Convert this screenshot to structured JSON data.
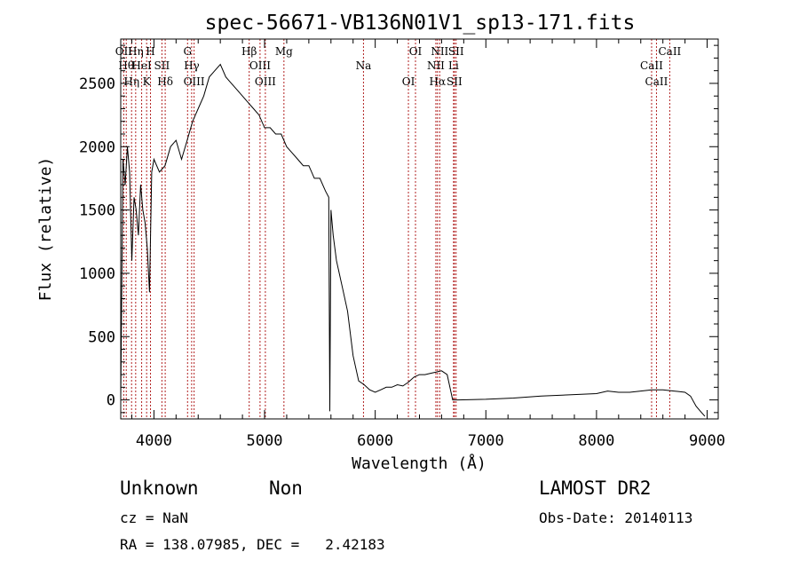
{
  "chart_data": {
    "type": "line",
    "title": "spec-56671-VB136N01V1_sp13-171.fits",
    "xlabel": "Wavelength (Å)",
    "ylabel": "Flux (relative)",
    "xlim": [
      3700,
      9100
    ],
    "ylim": [
      -150,
      2850
    ],
    "xticks": [
      4000,
      5000,
      6000,
      7000,
      8000,
      9000
    ],
    "yticks": [
      0,
      500,
      1000,
      1500,
      2000,
      2500
    ],
    "line_color": "#000000",
    "marker_color": "#b22222",
    "series": [
      {
        "x": [
          3700,
          3720,
          3740,
          3760,
          3780,
          3800,
          3820,
          3840,
          3860,
          3880,
          3900,
          3920,
          3940,
          3960,
          3980,
          4000,
          4050,
          4100,
          4150,
          4200,
          4250,
          4300,
          4350,
          4400,
          4450,
          4500,
          4550,
          4600,
          4650,
          4700,
          4750,
          4800,
          4850,
          4900,
          4950,
          5000,
          5050,
          5100,
          5150,
          5200,
          5250,
          5300,
          5350,
          5400,
          5450,
          5500,
          5550,
          5580,
          5590,
          5600,
          5620,
          5650,
          5700,
          5750,
          5800,
          5850,
          5900,
          5950,
          6000,
          6050,
          6100,
          6150,
          6200,
          6250,
          6300,
          6350,
          6400,
          6450,
          6500,
          6550,
          6600,
          6650,
          6700,
          6750,
          7000,
          7250,
          7500,
          7750,
          8000,
          8100,
          8200,
          8300,
          8400,
          8500,
          8600,
          8700,
          8800,
          8850,
          8900,
          8950,
          8980
        ],
        "y": [
          0,
          1900,
          1700,
          2000,
          1800,
          1100,
          1600,
          1500,
          1300,
          1700,
          1500,
          1400,
          1200,
          850,
          1800,
          1900,
          1800,
          1850,
          2000,
          2050,
          1900,
          2050,
          2200,
          2300,
          2400,
          2550,
          2600,
          2650,
          2550,
          2500,
          2450,
          2400,
          2350,
          2300,
          2250,
          2150,
          2150,
          2100,
          2100,
          2000,
          1950,
          1900,
          1850,
          1850,
          1750,
          1750,
          1650,
          1600,
          -90,
          1500,
          1300,
          1100,
          900,
          700,
          350,
          150,
          120,
          80,
          60,
          80,
          100,
          100,
          120,
          110,
          140,
          180,
          200,
          200,
          210,
          220,
          230,
          200,
          0,
          0,
          5,
          15,
          30,
          40,
          50,
          70,
          60,
          60,
          70,
          80,
          80,
          70,
          60,
          30,
          -50,
          -100,
          -130
        ]
      }
    ],
    "lines": [
      {
        "w": 3727,
        "label": "OII"
      },
      {
        "w": 3750,
        "label": "Hθ"
      },
      {
        "w": 3798,
        "label": "Hη"
      },
      {
        "w": 3835,
        "label": "Hη"
      },
      {
        "w": 3889,
        "label": "HeI"
      },
      {
        "w": 3934,
        "label": "K"
      },
      {
        "w": 3969,
        "label": "H"
      },
      {
        "w": 4072,
        "label": "SII"
      },
      {
        "w": 4102,
        "label": "Hδ"
      },
      {
        "w": 4304,
        "label": "G"
      },
      {
        "w": 4341,
        "label": "Hγ"
      },
      {
        "w": 4363,
        "label": "OIII"
      },
      {
        "w": 4861,
        "label": "Hβ"
      },
      {
        "w": 4959,
        "label": "OIII"
      },
      {
        "w": 5007,
        "label": "OIII"
      },
      {
        "w": 5175,
        "label": "Mg"
      },
      {
        "w": 5894,
        "label": "Na"
      },
      {
        "w": 6300,
        "label": "OI"
      },
      {
        "w": 6364,
        "label": "OI"
      },
      {
        "w": 6548,
        "label": "NII"
      },
      {
        "w": 6563,
        "label": "Hα"
      },
      {
        "w": 6583,
        "label": "NII"
      },
      {
        "w": 6708,
        "label": "Li"
      },
      {
        "w": 6716,
        "label": "SII"
      },
      {
        "w": 6731,
        "label": "SII"
      },
      {
        "w": 8498,
        "label": "CaII"
      },
      {
        "w": 8542,
        "label": "CaII"
      },
      {
        "w": 8662,
        "label": "CaII"
      }
    ]
  },
  "info": {
    "class": "Unknown",
    "subclass": "Non",
    "survey": "LAMOST DR2",
    "cz": "cz = NaN",
    "obs_date": "Obs-Date: 20140113",
    "coords": "RA = 138.07985, DEC =   2.42183"
  }
}
